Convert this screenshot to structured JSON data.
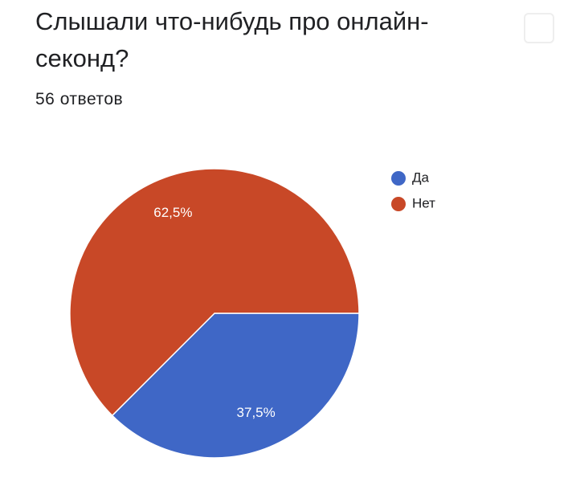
{
  "chart_data": {
    "type": "pie",
    "title": "Слышали что-нибудь про онлайн-секонд?",
    "subtitle": "56 ответов",
    "categories": [
      "Да",
      "Нет"
    ],
    "values": [
      37.5,
      62.5
    ],
    "value_labels": [
      "37,5%",
      "62,5%"
    ],
    "colors": [
      "#3f67c6",
      "#c84827"
    ],
    "legend": "right"
  }
}
